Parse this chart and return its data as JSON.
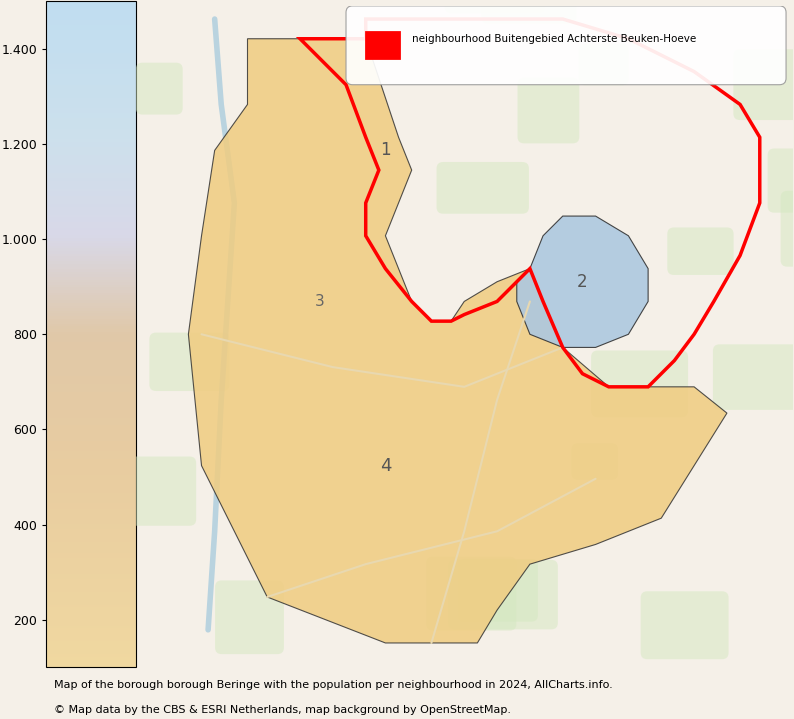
{
  "title": "neighbourhood Buitengebied Achterste Beuken-Hoeve",
  "legend_label": "neighbourhood Buitengebied Achterste Beuken-Hoeve",
  "colorbar_ticks": [
    200,
    400,
    600,
    800,
    1000,
    1200,
    1400
  ],
  "colorbar_min": 100,
  "colorbar_max": 1500,
  "colorbar_colors_bottom": "#f5dfa0",
  "colorbar_colors_top": "#c8e0f0",
  "caption_line1": "Map of the borough borough Beringe with the population per neighbourhood in 2024, AllCharts.info.",
  "caption_line2": "© Map data by the CBS & ESRI Netherlands, map background by OpenStreetMap.",
  "highlight_color": "#ff0000",
  "neighbourhood1_color": "#f5dfa0",
  "neighbourhood2_color": "#adc8e0",
  "border_color": "#333333",
  "bg_color": "#f0ede0",
  "map_bg": "#e8e0c8",
  "fig_width": 7.94,
  "fig_height": 7.19,
  "dpi": 100
}
